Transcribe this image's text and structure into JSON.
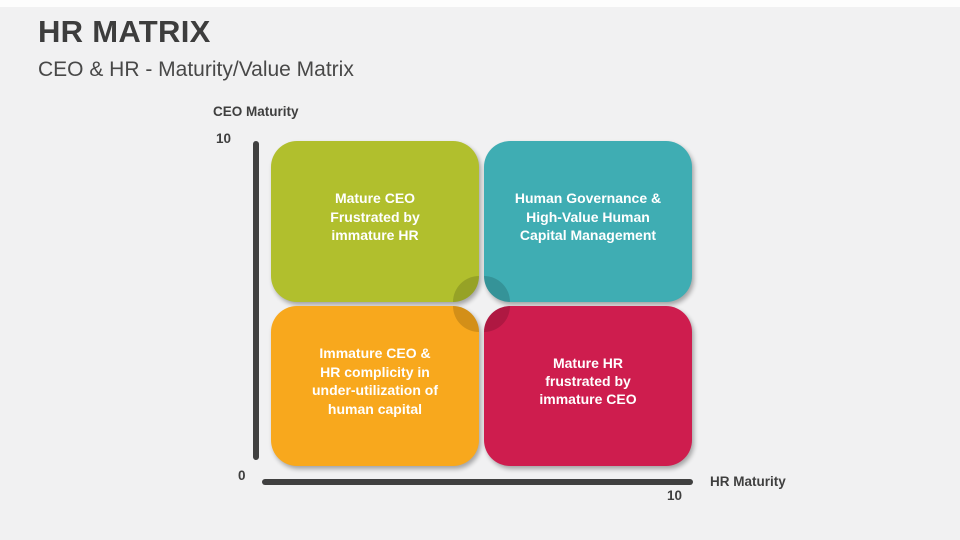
{
  "header": {
    "title": "HR MATRIX",
    "subtitle": "CEO & HR - Maturity/Value Matrix"
  },
  "matrix": {
    "axis_color": "#404040",
    "y_axis": {
      "label": "CEO Maturity",
      "max_label": "10"
    },
    "x_axis": {
      "label": "HR Maturity",
      "max_label": "10"
    },
    "origin_label": "0",
    "quadrants": [
      {
        "position": "top-left",
        "label": "Mature CEO\nFrustrated by\nimmature HR",
        "color": "#b1bf2d",
        "text_color": "#ffffff"
      },
      {
        "position": "top-right",
        "label": "Human Governance &\nHigh-Value Human\nCapital Management",
        "color": "#3fadb3",
        "text_color": "#ffffff"
      },
      {
        "position": "bottom-left",
        "label": "Immature CEO &\nHR complicity in\nunder-utilization of\nhuman capital",
        "color": "#f8a81d",
        "text_color": "#ffffff"
      },
      {
        "position": "bottom-right",
        "label": "Mature HR\nfrustrated by\nimmature CEO",
        "color": "#ce1d4e",
        "text_color": "#ffffff"
      }
    ]
  }
}
